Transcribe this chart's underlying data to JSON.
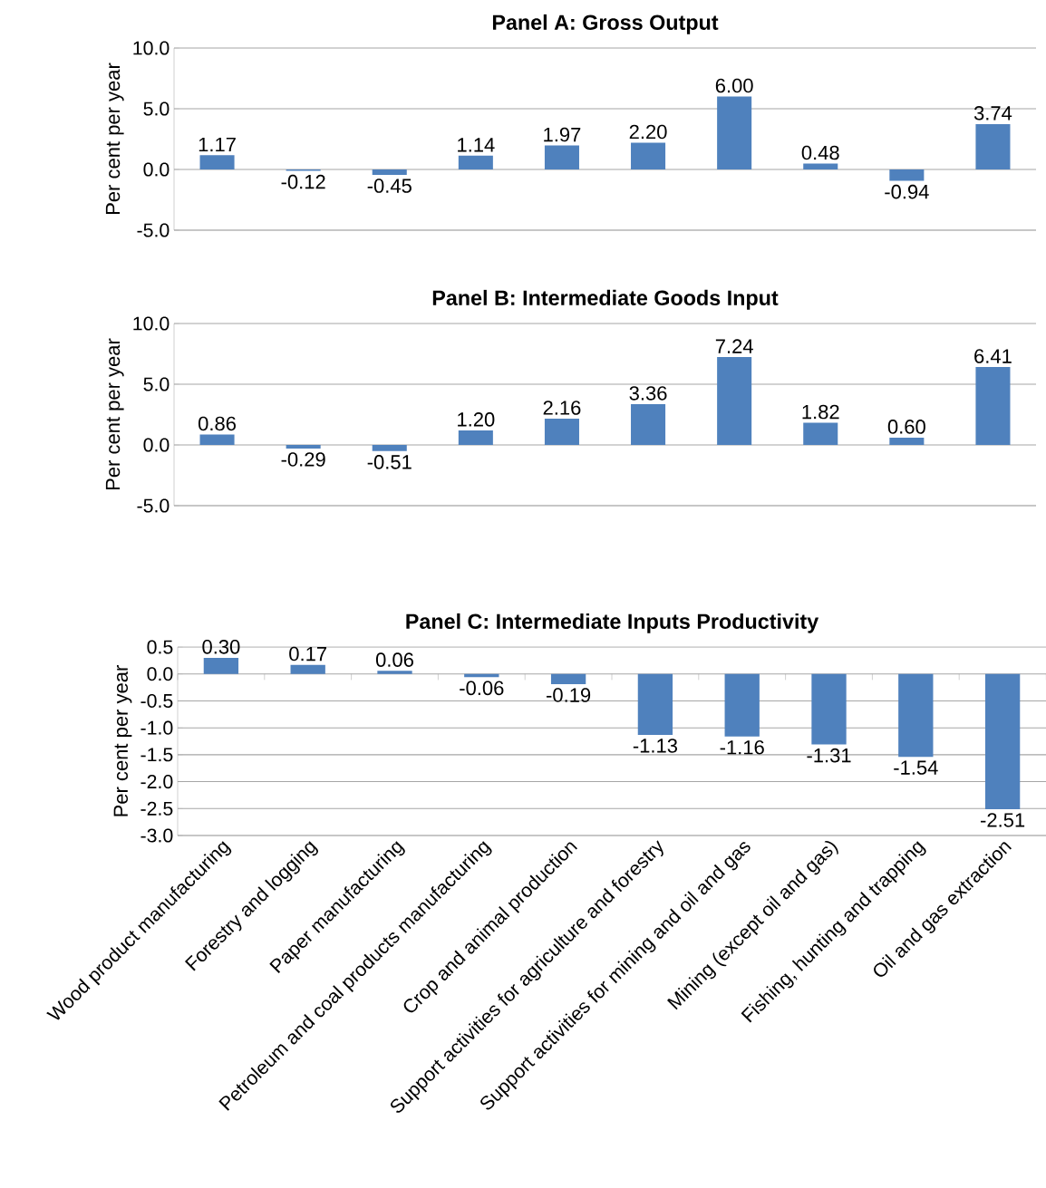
{
  "chart_data": [
    {
      "type": "bar",
      "title": "Panel A: Gross Output",
      "ylabel": "Per cent per year",
      "categories": [
        null,
        null,
        null,
        null,
        null,
        null,
        null,
        null,
        null,
        null
      ],
      "values": [
        1.17,
        -0.12,
        -0.45,
        1.14,
        1.97,
        2.2,
        6.0,
        0.48,
        -0.94,
        3.74
      ],
      "value_labels": [
        "1.17",
        "-0.12",
        "-0.45",
        "1.14",
        "1.97",
        "2.20",
        "6.00",
        "0.48",
        "-0.94",
        "3.74"
      ],
      "color": "#4f81bd",
      "ylim": [
        -5,
        10
      ],
      "yticks": [
        {
          "value": -5,
          "label": "-5.0"
        },
        {
          "value": 0,
          "label": "0.0"
        },
        {
          "value": 5,
          "label": "5.0"
        },
        {
          "value": 10,
          "label": "10.0"
        }
      ],
      "grid": "y",
      "tick_labels": "y"
    },
    {
      "type": "bar",
      "title": "Panel B: Intermediate Goods Input",
      "ylabel": "Per cent per year",
      "categories": [
        null,
        null,
        null,
        null,
        null,
        null,
        null,
        null,
        null,
        null
      ],
      "values": [
        0.86,
        -0.29,
        -0.51,
        1.2,
        2.16,
        3.36,
        7.24,
        1.82,
        0.6,
        6.41
      ],
      "value_labels": [
        "0.86",
        "-0.29",
        "-0.51",
        "1.20",
        "2.16",
        "3.36",
        "7.24",
        "1.82",
        "0.60",
        "6.41"
      ],
      "color": "#4f81bd",
      "ylim": [
        -5,
        10
      ],
      "yticks": [
        {
          "value": -5,
          "label": "-5.0"
        },
        {
          "value": 0,
          "label": "0.0"
        },
        {
          "value": 5,
          "label": "5.0"
        },
        {
          "value": 10,
          "label": "10.0"
        }
      ],
      "grid": "y",
      "tick_labels": "y"
    },
    {
      "type": "bar",
      "title": "Panel C: Intermediate Inputs Productivity",
      "ylabel": "Per cent per year",
      "categories": [
        "Wood product manufacturing",
        "Forestry and logging",
        "Paper manufacturing",
        "Petroleum and coal products manufacturing",
        "Crop and animal production",
        "Support activities for agriculture and forestry",
        "Support activities for mining and oil and gas",
        "Mining (except oil and gas)",
        "Fishing, hunting and trapping",
        "Oil and gas extraction"
      ],
      "values": [
        0.3,
        0.17,
        0.06,
        -0.06,
        -0.19,
        -1.13,
        -1.16,
        -1.31,
        -1.54,
        -2.51
      ],
      "value_labels": [
        "0.30",
        "0.17",
        "0.06",
        "-0.06",
        "-0.19",
        "-1.13",
        "-1.16",
        "-1.31",
        "-1.54",
        "-2.51"
      ],
      "color": "#4f81bd",
      "ylim": [
        -3,
        0.5
      ],
      "yticks": [
        {
          "value": -3,
          "label": "-3.0"
        },
        {
          "value": -2.5,
          "label": "-2.5"
        },
        {
          "value": -2,
          "label": "-2.0"
        },
        {
          "value": -1.5,
          "label": "-1.5"
        },
        {
          "value": -1,
          "label": "-1.0"
        },
        {
          "value": -0.5,
          "label": "-0.5"
        },
        {
          "value": 0,
          "label": "0.0"
        },
        {
          "value": 0.5,
          "label": "0.5"
        }
      ],
      "grid": "y"
    }
  ]
}
